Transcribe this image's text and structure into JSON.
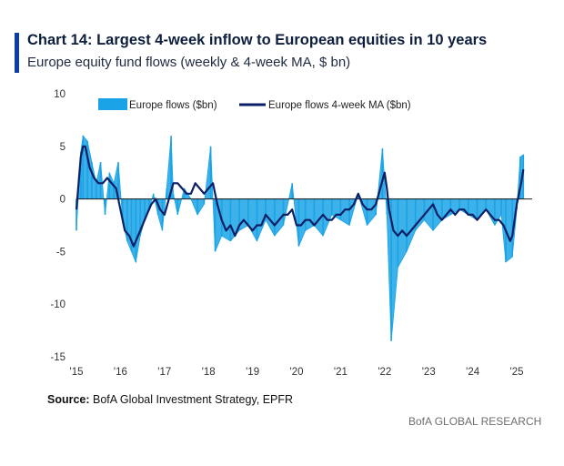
{
  "header": {
    "title": "Chart 14: Largest 4-week inflow to European equities in 10 years",
    "subtitle": "Europe equity fund flows (weekly & 4-week MA, $ bn)"
  },
  "footer": {
    "source_label": "Source:",
    "source_text": " BofA Global Investment Strategy, EPFR",
    "brand": "BofA GLOBAL RESEARCH"
  },
  "chart_data": {
    "type": "area",
    "xlabel": "",
    "ylabel": "",
    "ylim": [
      -15,
      10
    ],
    "y_ticks": [
      10,
      5,
      0,
      -5,
      -10,
      -15
    ],
    "x_range": [
      2015.0,
      2025.35
    ],
    "x_ticks": [
      {
        "x": 2015,
        "label": "'15"
      },
      {
        "x": 2016,
        "label": "'16"
      },
      {
        "x": 2017,
        "label": "'17"
      },
      {
        "x": 2018,
        "label": "'18"
      },
      {
        "x": 2019,
        "label": "'19"
      },
      {
        "x": 2020,
        "label": "'20"
      },
      {
        "x": 2021,
        "label": "'21"
      },
      {
        "x": 2022,
        "label": "'22"
      },
      {
        "x": 2023,
        "label": "'23"
      },
      {
        "x": 2024,
        "label": "'24"
      },
      {
        "x": 2025,
        "label": "'25"
      }
    ],
    "grid": false,
    "legend_position": "top",
    "colors": {
      "weekly": "#1aa3e6",
      "ma": "#0b1f66",
      "zero_line": "#1a1a1a"
    },
    "series": [
      {
        "name": "Europe flows ($bn)",
        "kind": "bars",
        "x": [
          2015.0,
          2015.1,
          2015.15,
          2015.25,
          2015.35,
          2015.45,
          2015.55,
          2015.65,
          2015.75,
          2015.85,
          2015.95,
          2016.05,
          2016.15,
          2016.25,
          2016.35,
          2016.45,
          2016.55,
          2016.65,
          2016.75,
          2016.85,
          2016.95,
          2017.05,
          2017.15,
          2017.2,
          2017.3,
          2017.45,
          2017.6,
          2017.75,
          2017.9,
          2018.05,
          2018.15,
          2018.3,
          2018.5,
          2018.7,
          2018.9,
          2019.1,
          2019.3,
          2019.5,
          2019.7,
          2019.9,
          2020.05,
          2020.2,
          2020.4,
          2020.6,
          2020.8,
          2021.0,
          2021.2,
          2021.4,
          2021.6,
          2021.8,
          2021.95,
          2022.05,
          2022.15,
          2022.3,
          2022.5,
          2022.7,
          2022.9,
          2023.1,
          2023.3,
          2023.5,
          2023.7,
          2023.9,
          2024.1,
          2024.3,
          2024.5,
          2024.65,
          2024.75,
          2024.9,
          2025.0,
          2025.08,
          2025.15
        ],
        "values": [
          -3.0,
          4.5,
          6.0,
          5.5,
          3.5,
          1.5,
          3.5,
          -1.5,
          2.5,
          1.5,
          3.5,
          -2.0,
          -4.0,
          -5.0,
          -6.0,
          -3.5,
          -2.0,
          -1.0,
          0.5,
          -1.5,
          -3.0,
          1.0,
          6.0,
          0.5,
          -1.5,
          1.0,
          0.0,
          -1.5,
          -0.5,
          5.0,
          -5.0,
          -3.5,
          -4.0,
          -3.0,
          -2.5,
          -4.0,
          -2.0,
          -3.5,
          -2.5,
          1.5,
          -4.5,
          -3.0,
          -2.5,
          -3.5,
          -1.5,
          -2.0,
          -2.5,
          0.5,
          -2.5,
          -1.5,
          4.8,
          -1.5,
          -13.5,
          -6.5,
          -5.0,
          -3.0,
          -2.0,
          -3.0,
          -2.0,
          -1.5,
          -1.0,
          -1.5,
          -2.0,
          -1.0,
          -2.5,
          -1.5,
          -6.0,
          -5.5,
          -1.0,
          4.0,
          4.2
        ]
      },
      {
        "name": "Europe flows 4-week MA ($bn)",
        "kind": "line",
        "x": [
          2015.0,
          2015.05,
          2015.1,
          2015.15,
          2015.2,
          2015.3,
          2015.4,
          2015.5,
          2015.6,
          2015.7,
          2015.8,
          2015.9,
          2016.0,
          2016.1,
          2016.2,
          2016.3,
          2016.4,
          2016.5,
          2016.6,
          2016.7,
          2016.8,
          2016.9,
          2017.0,
          2017.1,
          2017.2,
          2017.3,
          2017.4,
          2017.5,
          2017.6,
          2017.7,
          2017.8,
          2017.9,
          2018.0,
          2018.1,
          2018.2,
          2018.3,
          2018.4,
          2018.5,
          2018.6,
          2018.7,
          2018.8,
          2018.9,
          2019.0,
          2019.1,
          2019.2,
          2019.3,
          2019.4,
          2019.5,
          2019.6,
          2019.7,
          2019.8,
          2019.9,
          2020.0,
          2020.1,
          2020.2,
          2020.3,
          2020.4,
          2020.5,
          2020.6,
          2020.7,
          2020.8,
          2020.9,
          2021.0,
          2021.1,
          2021.2,
          2021.3,
          2021.4,
          2021.5,
          2021.6,
          2021.7,
          2021.8,
          2021.9,
          2022.0,
          2022.05,
          2022.1,
          2022.2,
          2022.3,
          2022.4,
          2022.5,
          2022.6,
          2022.7,
          2022.8,
          2022.9,
          2023.0,
          2023.1,
          2023.2,
          2023.3,
          2023.4,
          2023.5,
          2023.6,
          2023.7,
          2023.8,
          2023.9,
          2024.0,
          2024.1,
          2024.2,
          2024.3,
          2024.4,
          2024.5,
          2024.6,
          2024.7,
          2024.8,
          2024.85,
          2024.9,
          2025.0,
          2025.05,
          2025.1,
          2025.15
        ],
        "values": [
          -1.0,
          1.5,
          4.0,
          5.0,
          5.0,
          3.0,
          2.0,
          1.5,
          1.5,
          2.0,
          1.5,
          1.0,
          -1.0,
          -3.0,
          -3.5,
          -4.5,
          -3.5,
          -2.5,
          -1.5,
          -0.5,
          0.0,
          -1.0,
          -1.5,
          0.0,
          1.5,
          1.5,
          1.0,
          0.5,
          0.5,
          1.5,
          1.0,
          0.5,
          1.0,
          1.5,
          -0.5,
          -2.0,
          -3.0,
          -2.5,
          -3.5,
          -2.5,
          -2.0,
          -2.5,
          -3.0,
          -2.5,
          -2.5,
          -1.5,
          -2.0,
          -2.5,
          -2.0,
          -1.5,
          -1.5,
          -1.0,
          -2.5,
          -2.5,
          -2.0,
          -2.0,
          -2.5,
          -2.0,
          -1.5,
          -2.0,
          -2.0,
          -1.5,
          -1.5,
          -1.0,
          -1.0,
          -0.5,
          0.5,
          -0.5,
          -1.0,
          -1.0,
          -0.5,
          1.0,
          2.5,
          1.0,
          -1.0,
          -3.0,
          -3.5,
          -3.0,
          -3.5,
          -3.0,
          -2.5,
          -2.0,
          -1.5,
          -1.0,
          -0.5,
          -1.5,
          -2.0,
          -1.5,
          -1.0,
          -1.5,
          -1.0,
          -1.0,
          -1.5,
          -1.5,
          -2.0,
          -1.5,
          -1.0,
          -1.5,
          -2.0,
          -2.0,
          -2.5,
          -3.5,
          -4.0,
          -3.5,
          -0.5,
          0.5,
          1.5,
          2.8
        ]
      }
    ]
  }
}
